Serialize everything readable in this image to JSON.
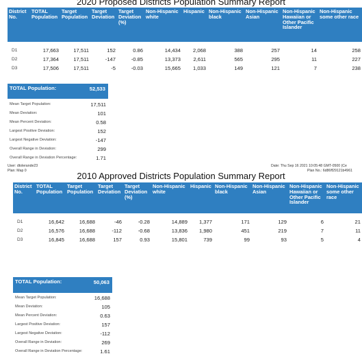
{
  "report1": {
    "title": "2020 Proposed Districts Population Summary Report",
    "columns": [
      "District No.",
      "TOTAL Population",
      "Target Population",
      "Target Deviation",
      "Target Deviation (%)",
      "Non-Hispanic white",
      "Hispanic",
      "Non-Hispanic black",
      "Non-Hispanic Asian",
      "Non-Hispanic Hawaiian or Other Pacific Islander",
      "Non-Hispanic some other race"
    ],
    "rows": [
      [
        "D1",
        "17,663",
        "17,511",
        "152",
        "0.86",
        "14,434",
        "2,068",
        "388",
        "257",
        "14",
        "258"
      ],
      [
        "D2",
        "17,364",
        "17,511",
        "-147",
        "-0.85",
        "13,373",
        "2,611",
        "565",
        "295",
        "11",
        "227"
      ],
      [
        "D3",
        "17,506",
        "17,511",
        "-5",
        "-0.03",
        "15,665",
        "1,033",
        "149",
        "121",
        "7",
        "238"
      ]
    ],
    "summary": {
      "header_label": "TOTAL Population:",
      "header_value": "52,533",
      "rows": [
        {
          "label": "Mean Target Population:",
          "value": "17,511"
        },
        {
          "label": "Mean Deviation:",
          "value": "101"
        },
        {
          "label": "Mean Percent Deviation:",
          "value": "0.58"
        },
        {
          "label": "Largest Positive Deviation:",
          "value": "152"
        },
        {
          "label": "Largest Negative Deviation:",
          "value": "-147"
        },
        {
          "label": "Overall Range in Deviation:",
          "value": "299"
        },
        {
          "label": "Overall Range in Deviation Percentage:",
          "value": "1.71"
        }
      ]
    }
  },
  "meta": {
    "user": "User: dtolerande23",
    "plan": "Plan: Map 0",
    "date": "Date: Thu Sep 16 2021 10:05:48 GMT-0500 (Ce",
    "plan_no": "Plan No.: 6d86ff29121b4961"
  },
  "report2": {
    "title": "2010 Approved Districts Population Summary Report",
    "columns": [
      "District No.",
      "TOTAL Population",
      "Target Population",
      "Target Deviation",
      "Target Deviation (%)",
      "Non-Hispanic white",
      "Hispanic",
      "Non-Hispanic black",
      "Non-Hispanic Asian",
      "Non-Hispanic Hawaiian or Other Pacific Islander",
      "Non-Hispanic some other race"
    ],
    "rows": [
      [
        "D1",
        "16,642",
        "16,688",
        "-46",
        "-0.28",
        "14,889",
        "1,377",
        "171",
        "129",
        "6",
        "21"
      ],
      [
        "D2",
        "16,576",
        "16,688",
        "-112",
        "-0.68",
        "13,836",
        "1,980",
        "451",
        "219",
        "7",
        "11"
      ],
      [
        "D3",
        "16,845",
        "16,688",
        "157",
        "0.93",
        "15,801",
        "739",
        "99",
        "93",
        "5",
        "4"
      ]
    ],
    "summary": {
      "header_label": "TOTAL Population:",
      "header_value": "50,063",
      "rows": [
        {
          "label": "Mean Target Population:",
          "value": "16,688"
        },
        {
          "label": "Mean Deviation:",
          "value": "105"
        },
        {
          "label": "Mean Percent Deviation:",
          "value": "0.63"
        },
        {
          "label": "Largest Positive Deviation:",
          "value": "157"
        },
        {
          "label": "Largest Negative Deviation:",
          "value": "-112"
        },
        {
          "label": "Overall Range in Deviation:",
          "value": "269"
        },
        {
          "label": "Overall Range in Deviation Percentage:",
          "value": "1.61"
        }
      ]
    }
  }
}
